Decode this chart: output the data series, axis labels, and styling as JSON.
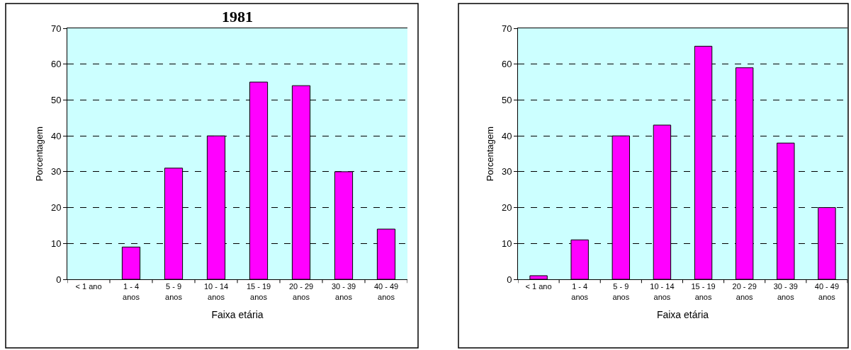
{
  "chart_data": [
    {
      "type": "bar",
      "title": "1981",
      "categories": [
        "< 1 ano",
        "1 - 4\nanos",
        "5 - 9\nanos",
        "10 - 14\nanos",
        "15 - 19\nanos",
        "20 - 29\nanos",
        "30 - 39\nanos",
        "40 - 49\nanos"
      ],
      "values": [
        0,
        9,
        31,
        40,
        55,
        54,
        30,
        14
      ],
      "color": "#ff00ff",
      "xlabel": "Faixa etária",
      "ylabel": "Porcentagem",
      "ylim": [
        0,
        70
      ],
      "yticks": [
        0,
        10,
        20,
        30,
        40,
        50,
        60,
        70
      ],
      "grid": "y"
    },
    {
      "type": "bar",
      "categories": [
        "< 1 ano",
        "1 - 4\nanos",
        "5 - 9\nanos",
        "10 - 14\nanos",
        "15 - 19\nanos",
        "20 - 29\nanos",
        "30 - 39\nanos",
        "40 - 49\nanos"
      ],
      "values": [
        1,
        11,
        40,
        43,
        65,
        59,
        38,
        20
      ],
      "color": "#ff00ff",
      "xlabel": "Faixa etária",
      "ylabel": "Porcentagem",
      "ylim": [
        0,
        70
      ],
      "yticks": [
        0,
        10,
        20,
        30,
        40,
        50,
        60,
        70
      ],
      "grid": "y"
    }
  ]
}
